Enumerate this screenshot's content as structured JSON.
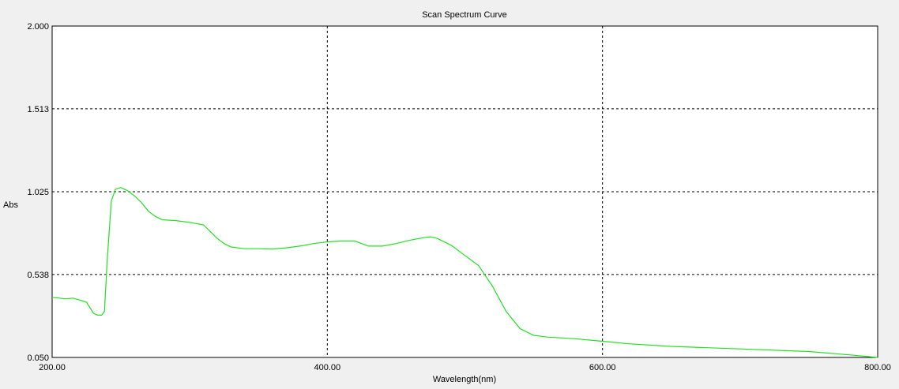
{
  "colors": {
    "background": "#f0f0f0",
    "plot_background": "#ffffff",
    "series": "#22e022",
    "grid": "#000000"
  },
  "chart_data": {
    "type": "line",
    "title": "Scan Spectrum Curve",
    "xlabel": "Wavelength(nm)",
    "ylabel": "Abs",
    "xlim": [
      200,
      800
    ],
    "ylim": [
      0.05,
      2.0
    ],
    "x_tick_values": [
      200,
      400,
      600,
      800
    ],
    "x_tick_labels": [
      "200.00",
      "400.00",
      "600.00",
      "800.00"
    ],
    "y_tick_values": [
      0.05,
      0.538,
      1.025,
      1.513,
      2.0
    ],
    "y_tick_labels": [
      "0.050",
      "0.538",
      "1.025",
      "1.513",
      "2.000"
    ],
    "grid": "dashed",
    "series": [
      {
        "x": [
          200,
          205,
          210,
          215,
          220,
          225,
          230,
          233,
          236,
          238,
          240,
          243,
          246,
          250,
          255,
          260,
          265,
          270,
          275,
          280,
          290,
          300,
          310,
          315,
          320,
          325,
          330,
          340,
          350,
          360,
          370,
          380,
          390,
          400,
          410,
          420,
          425,
          430,
          440,
          450,
          460,
          470,
          475,
          480,
          490,
          500,
          510,
          520,
          530,
          540,
          550,
          560,
          570,
          580,
          600,
          620,
          650,
          700,
          750,
          780,
          800
        ],
        "y": [
          0.404,
          0.399,
          0.395,
          0.399,
          0.388,
          0.375,
          0.31,
          0.299,
          0.299,
          0.32,
          0.62,
          0.97,
          1.04,
          1.05,
          1.03,
          1.0,
          0.96,
          0.91,
          0.88,
          0.86,
          0.855,
          0.845,
          0.83,
          0.79,
          0.75,
          0.72,
          0.7,
          0.69,
          0.69,
          0.688,
          0.695,
          0.705,
          0.72,
          0.73,
          0.735,
          0.735,
          0.72,
          0.705,
          0.705,
          0.72,
          0.74,
          0.755,
          0.76,
          0.75,
          0.71,
          0.65,
          0.59,
          0.47,
          0.32,
          0.22,
          0.18,
          0.17,
          0.165,
          0.16,
          0.145,
          0.13,
          0.115,
          0.1,
          0.085,
          0.065,
          0.05
        ]
      }
    ]
  }
}
